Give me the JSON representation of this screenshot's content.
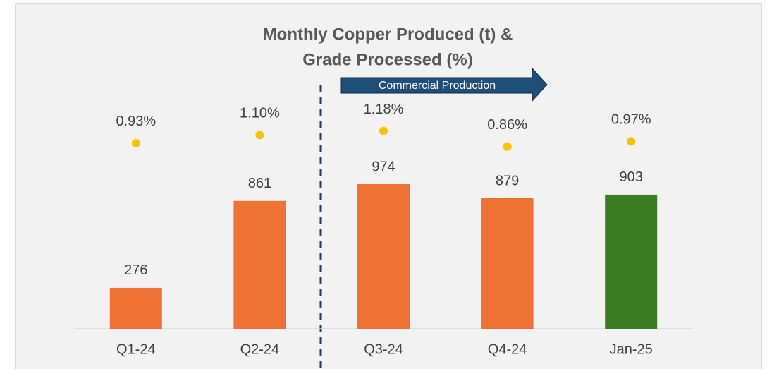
{
  "chart_data": {
    "type": "bar",
    "title": [
      "Monthly Copper Produced (t) &",
      "Grade Processed (%)"
    ],
    "annotation": "Commercial Production",
    "categories": [
      "Q1-24",
      "Q2-24",
      "Q3-24",
      "Q4-24",
      "Jan-25"
    ],
    "series": [
      {
        "type": "bar",
        "colors": [
          "#ed7233",
          "#ed7233",
          "#ed7233",
          "#ed7233",
          "#3a7d22"
        ],
        "values": [
          276,
          861,
          974,
          879,
          903
        ]
      },
      {
        "type": "scatter",
        "axis": "y2",
        "color": "#ffc000",
        "values": [
          0.93,
          1.1,
          1.18,
          0.86,
          0.97
        ],
        "value_labels": [
          "0.93%",
          "1.10%",
          "1.18%",
          "0.86%",
          "0.97%"
        ]
      }
    ],
    "ylim": [
      0,
      2000
    ],
    "y2lim": [
      -2.9,
      3.23
    ]
  }
}
